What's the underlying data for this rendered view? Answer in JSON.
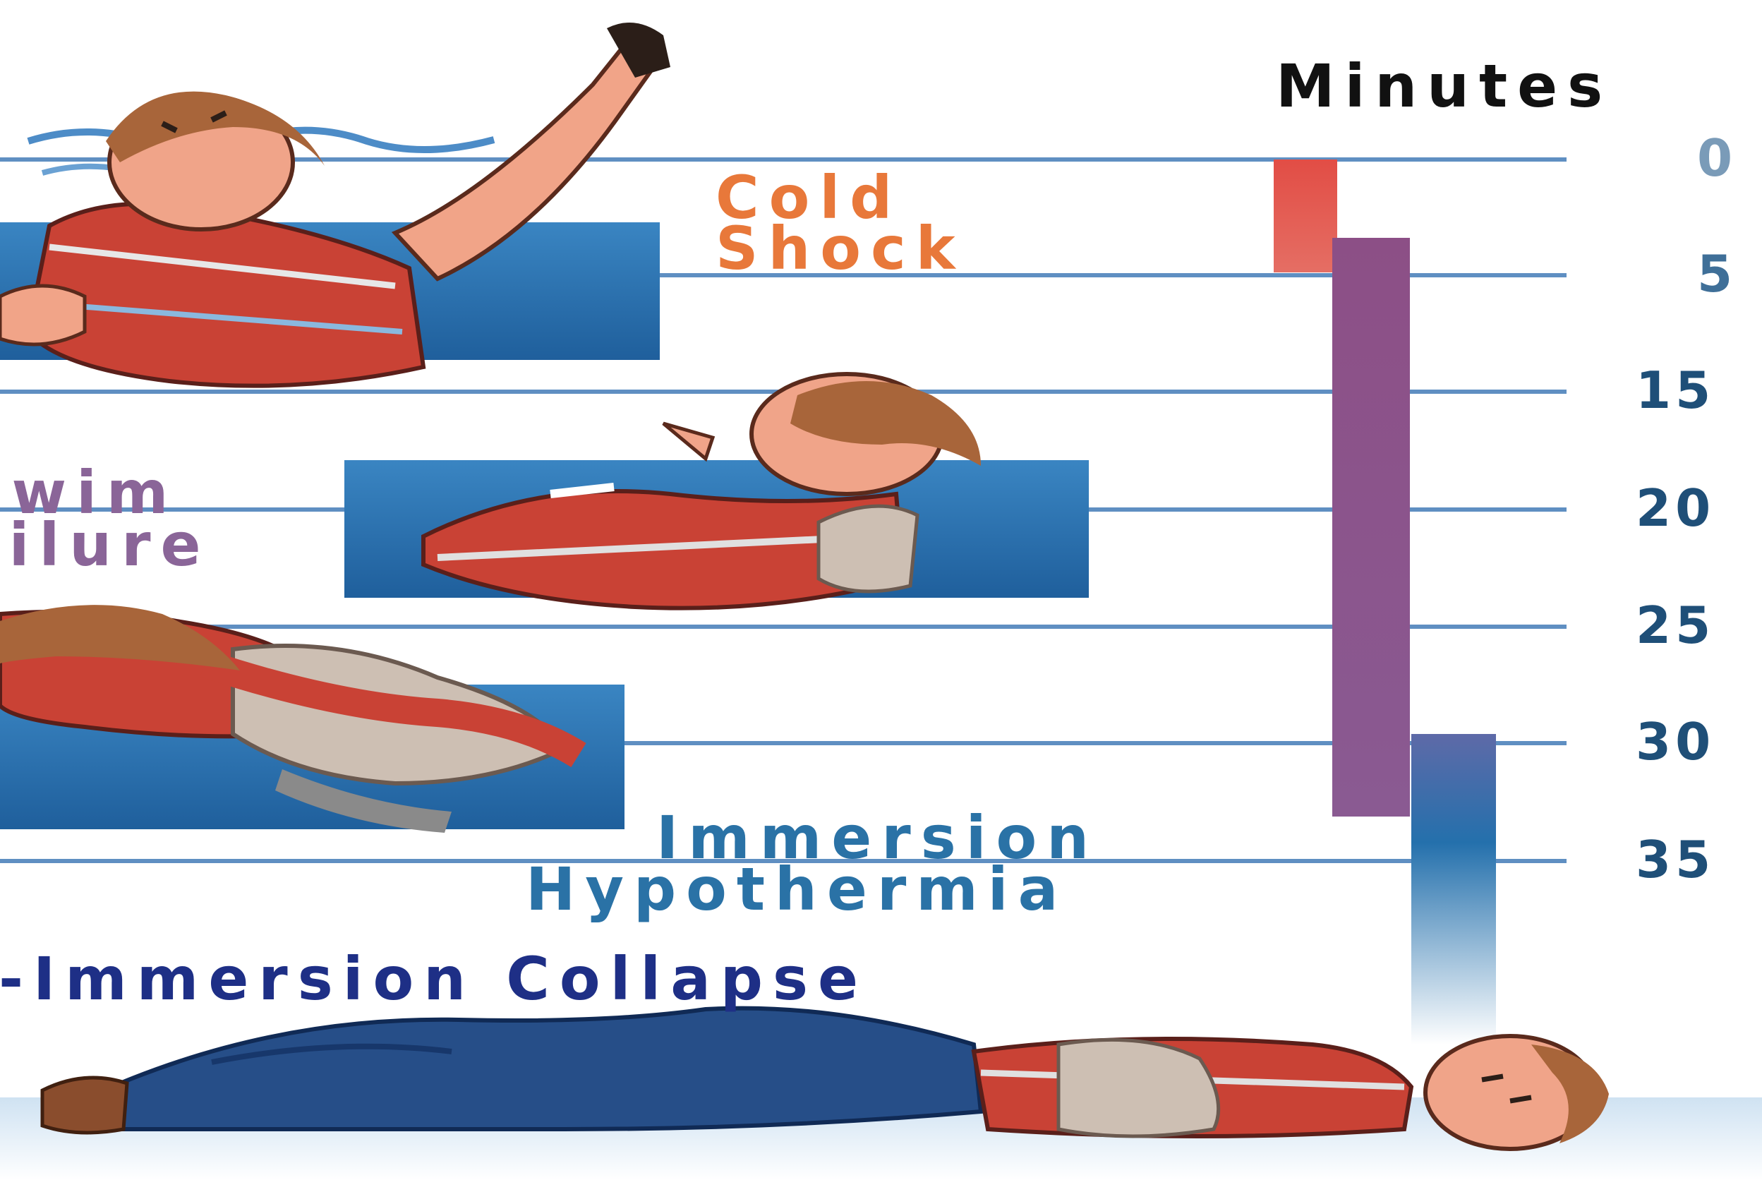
{
  "title": "Minutes",
  "axis": {
    "ticks": [
      "0",
      "5",
      "15",
      "20",
      "25",
      "30",
      "35"
    ]
  },
  "stages": [
    {
      "lines": [
        "Cold",
        "Shock"
      ],
      "color": "#e8783a"
    },
    {
      "lines": [
        "Swim",
        "ailure"
      ],
      "color": "#8a6598"
    },
    {
      "lines": [
        "Immersion",
        "Hypothermia"
      ],
      "color": "#2a72a6"
    },
    {
      "lines": [
        "st-Immersion Collapse"
      ],
      "color": "#1e2f86"
    }
  ],
  "colors": {
    "cold_shock_bar": "#e24d45",
    "swim_failure_bar": "#8c4f86",
    "hypothermia_bar": "#2470ac",
    "grid_line": "#5f8fc2",
    "water": "#2a6fae"
  },
  "illustrations": [
    "person-waving-in-water-icon",
    "person-floating-on-back-icon",
    "person-face-down-icon",
    "person-lying-collapsed-icon"
  ]
}
